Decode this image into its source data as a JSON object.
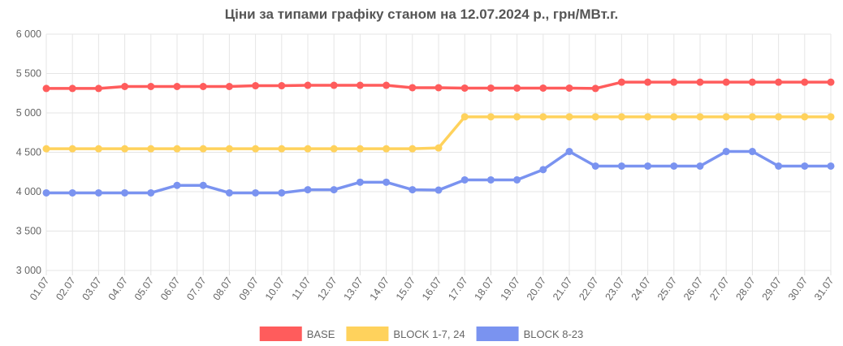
{
  "chart_data": {
    "type": "line",
    "title": "Ціни за типами графіку станом на 12.07.2024 р., грн/МВт.г.",
    "xlabel": "",
    "ylabel": "",
    "ylim": [
      3000,
      6000
    ],
    "yticks": [
      "3 000",
      "3 500",
      "4 000",
      "4 500",
      "5 000",
      "5 500",
      "6 000"
    ],
    "ytick_values": [
      3000,
      3500,
      4000,
      4500,
      5000,
      5500,
      6000
    ],
    "grid": true,
    "legend_position": "bottom",
    "categories": [
      "01.07",
      "02.07",
      "03.07",
      "04.07",
      "05.07",
      "06.07",
      "07.07",
      "08.07",
      "09.07",
      "10.07",
      "11.07",
      "12.07",
      "13.07",
      "14.07",
      "15.07",
      "16.07",
      "17.07",
      "18.07",
      "19.07",
      "20.07",
      "21.07",
      "22.07",
      "23.07",
      "24.07",
      "25.07",
      "26.07",
      "27.07",
      "28.07",
      "29.07",
      "30.07",
      "31.07"
    ],
    "series": [
      {
        "name": "BASE",
        "color": "#ff5c5c",
        "values": [
          5310,
          5310,
          5310,
          5335,
          5335,
          5335,
          5335,
          5335,
          5345,
          5345,
          5350,
          5350,
          5350,
          5350,
          5320,
          5320,
          5315,
          5315,
          5315,
          5315,
          5315,
          5310,
          5390,
          5390,
          5390,
          5390,
          5390,
          5390,
          5390,
          5390,
          5390
        ]
      },
      {
        "name": "BLOCK 1-7, 24",
        "color": "#ffd25c",
        "values": [
          4545,
          4545,
          4545,
          4545,
          4545,
          4545,
          4545,
          4545,
          4545,
          4545,
          4545,
          4545,
          4545,
          4545,
          4545,
          4555,
          4950,
          4950,
          4950,
          4950,
          4950,
          4950,
          4950,
          4950,
          4950,
          4950,
          4950,
          4950,
          4950,
          4950,
          4950
        ]
      },
      {
        "name": "BLOCK 8-23",
        "color": "#7a93f0",
        "values": [
          3985,
          3985,
          3985,
          3985,
          3985,
          4080,
          4080,
          3985,
          3985,
          3985,
          4025,
          4025,
          4120,
          4120,
          4025,
          4020,
          4150,
          4150,
          4150,
          4280,
          4510,
          4325,
          4325,
          4325,
          4325,
          4325,
          4510,
          4510,
          4325,
          4325,
          4325
        ]
      }
    ]
  }
}
